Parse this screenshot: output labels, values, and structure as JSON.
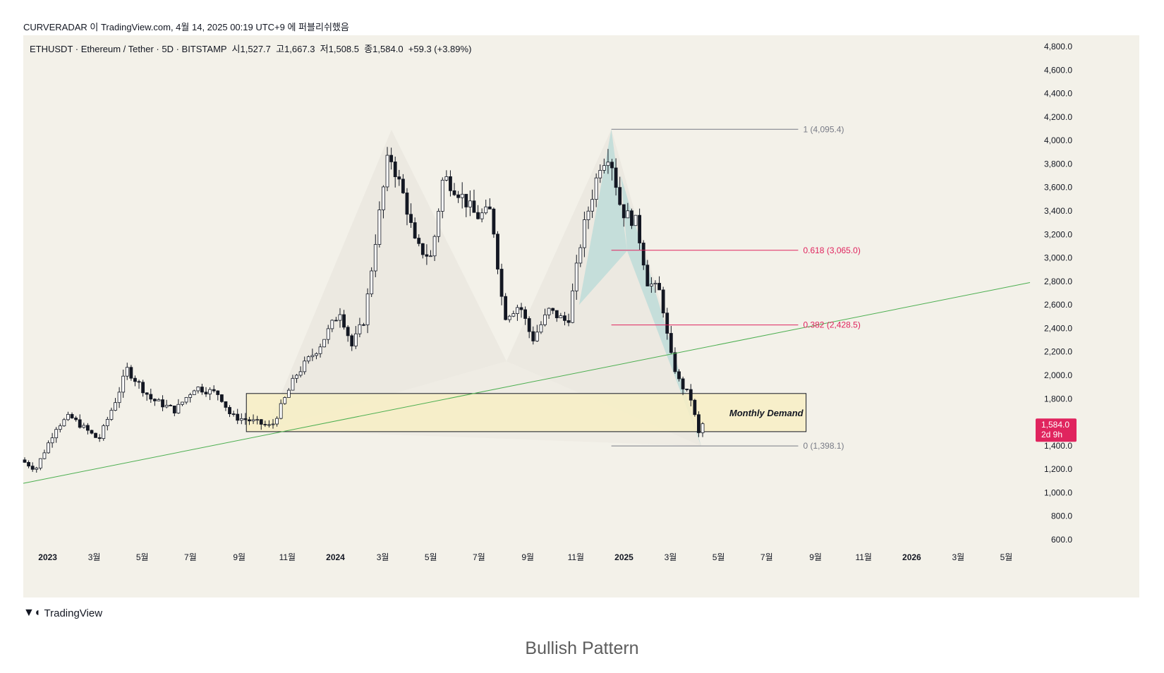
{
  "header": {
    "published_by": "CURVERADAR 이 TradingView.com, 4월 14, 2025 00:19 UTC+9 에 퍼블리쉬했음",
    "symbol_line": "ETHUSDT · Ethereum / Tether · 5D · BITSTAMP  시1,527.7  고1,667.3  저1,508.5  종1,584.0  +59.3 (+3.89%)"
  },
  "footer": {
    "brand": "TradingView",
    "caption": "Bullish Pattern"
  },
  "colors": {
    "background": "#f3f1e9",
    "candle": "#131722",
    "trendline": "#4caf50",
    "fib_mid": "#e0245e",
    "fib_edge": "#787b86",
    "demand_zone": "#f7eec4",
    "price_tag": "#e0245e"
  },
  "chart_data": {
    "type": "candlestick",
    "symbol": "ETHUSDT",
    "y_axis": {
      "ticks": [
        600,
        800,
        1000,
        1200,
        1400,
        1600,
        1800,
        2000,
        2200,
        2400,
        2600,
        2800,
        3000,
        3200,
        3400,
        3600,
        3800,
        4000,
        4200,
        4400,
        4600,
        4800
      ],
      "tick_labels": [
        "600.0",
        "800.0",
        "1,000.0",
        "1,200.0",
        "1,400.0",
        "1,600.0",
        "1,800.0",
        "2,000.0",
        "2,200.0",
        "2,400.0",
        "2,600.0",
        "2,800.0",
        "3,000.0",
        "3,200.0",
        "3,400.0",
        "3,600.0",
        "3,800.0",
        "4,000.0",
        "4,200.0",
        "4,400.0",
        "4,600.0",
        "4,800.0"
      ]
    },
    "x_axis": {
      "range": [
        "2022-12-01",
        "2026-05-31"
      ],
      "ticks": [
        {
          "label": "2023",
          "date": "2023-01-01",
          "bold": true
        },
        {
          "label": "3월",
          "date": "2023-03-01"
        },
        {
          "label": "5월",
          "date": "2023-05-01"
        },
        {
          "label": "7월",
          "date": "2023-07-01"
        },
        {
          "label": "9월",
          "date": "2023-09-01"
        },
        {
          "label": "11월",
          "date": "2023-11-01"
        },
        {
          "label": "2024",
          "date": "2024-01-01",
          "bold": true
        },
        {
          "label": "3월",
          "date": "2024-03-01"
        },
        {
          "label": "5월",
          "date": "2024-05-01"
        },
        {
          "label": "7월",
          "date": "2024-07-01"
        },
        {
          "label": "9월",
          "date": "2024-09-01"
        },
        {
          "label": "11월",
          "date": "2024-11-01"
        },
        {
          "label": "2025",
          "date": "2025-01-01",
          "bold": true
        },
        {
          "label": "3월",
          "date": "2025-03-01"
        },
        {
          "label": "5월",
          "date": "2025-05-01"
        },
        {
          "label": "7월",
          "date": "2025-07-01"
        },
        {
          "label": "9월",
          "date": "2025-09-01"
        },
        {
          "label": "11월",
          "date": "2025-11-01"
        },
        {
          "label": "2026",
          "date": "2026-01-01",
          "bold": true
        },
        {
          "label": "3월",
          "date": "2026-03-01"
        },
        {
          "label": "5월",
          "date": "2026-05-01"
        }
      ]
    },
    "candle_close_path": [
      [
        "2022-12-01",
        1280
      ],
      [
        "2022-12-20",
        1200
      ],
      [
        "2023-01-15",
        1560
      ],
      [
        "2023-02-01",
        1650
      ],
      [
        "2023-03-10",
        1450
      ],
      [
        "2023-04-01",
        1800
      ],
      [
        "2023-04-15",
        2050
      ],
      [
        "2023-05-15",
        1800
      ],
      [
        "2023-06-15",
        1700
      ],
      [
        "2023-07-10",
        1900
      ],
      [
        "2023-08-10",
        1840
      ],
      [
        "2023-08-25",
        1650
      ],
      [
        "2023-09-15",
        1620
      ],
      [
        "2023-10-15",
        1560
      ],
      [
        "2023-11-01",
        1800
      ],
      [
        "2023-11-15",
        2000
      ],
      [
        "2023-12-15",
        2250
      ],
      [
        "2024-01-10",
        2550
      ],
      [
        "2024-01-25",
        2250
      ],
      [
        "2024-02-10",
        2480
      ],
      [
        "2024-02-25",
        3200
      ],
      [
        "2024-03-12",
        3900
      ],
      [
        "2024-04-01",
        3500
      ],
      [
        "2024-04-15",
        3100
      ],
      [
        "2024-05-05",
        3000
      ],
      [
        "2024-05-20",
        3700
      ],
      [
        "2024-06-10",
        3550
      ],
      [
        "2024-07-01",
        3350
      ],
      [
        "2024-07-20",
        3400
      ],
      [
        "2024-08-05",
        2500
      ],
      [
        "2024-08-25",
        2600
      ],
      [
        "2024-09-10",
        2300
      ],
      [
        "2024-10-01",
        2550
      ],
      [
        "2024-10-25",
        2450
      ],
      [
        "2024-11-12",
        3200
      ],
      [
        "2024-12-05",
        3800
      ],
      [
        "2024-12-17",
        3900
      ],
      [
        "2025-01-01",
        3400
      ],
      [
        "2025-01-20",
        3300
      ],
      [
        "2025-02-03",
        2800
      ],
      [
        "2025-02-20",
        2700
      ],
      [
        "2025-03-03",
        2200
      ],
      [
        "2025-03-15",
        1950
      ],
      [
        "2025-03-30",
        1800
      ],
      [
        "2025-04-09",
        1500
      ],
      [
        "2025-04-13",
        1584
      ]
    ],
    "last_price": {
      "label": "1,584.0",
      "countdown": "2d 9h",
      "value": 1584
    },
    "fib_levels": [
      {
        "label": "1 (4,095.4)",
        "value": 4095.4,
        "level": "edge"
      },
      {
        "label": "0.618 (3,065.0)",
        "value": 3065.0,
        "level": "mid"
      },
      {
        "label": "0.382 (2,428.5)",
        "value": 2428.5,
        "level": "mid"
      },
      {
        "label": "0 (1,398.1)",
        "value": 1398.1,
        "level": "edge"
      }
    ],
    "fib_range": [
      "2024-12-16",
      "2025-08-10"
    ],
    "demand_zone": {
      "label": "Monthly Demand",
      "from": "2023-09-10",
      "to": "2025-08-20",
      "low": 1520,
      "high": 1845
    },
    "trendline": {
      "points": [
        [
          "2022-12-01",
          1080
        ],
        [
          "2026-05-31",
          2790
        ]
      ]
    },
    "harmonic_pattern": {
      "points": [
        [
          "2023-10-05",
          1535
        ],
        [
          "2024-03-12",
          4090
        ],
        [
          "2024-08-05",
          2120
        ],
        [
          "2024-12-16",
          4095
        ],
        [
          "2025-04-09",
          1398
        ]
      ]
    }
  }
}
